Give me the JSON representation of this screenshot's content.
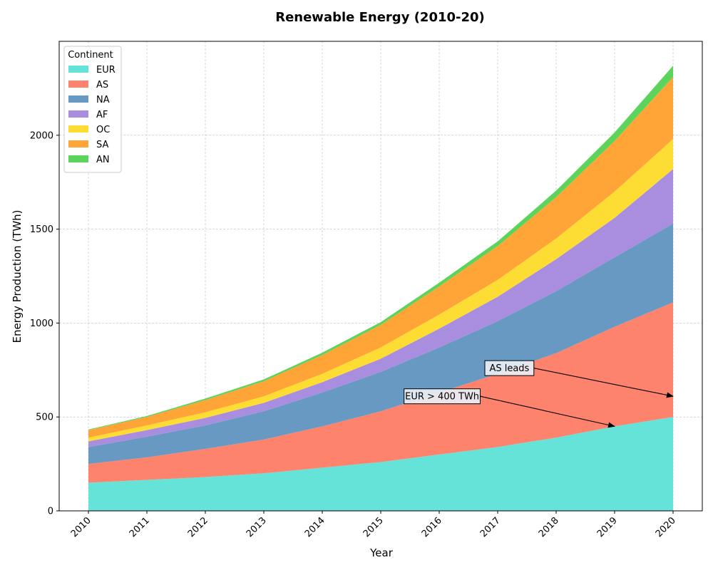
{
  "chart_data": {
    "type": "area",
    "stacked": true,
    "title": "Renewable Energy (2010-20)",
    "xlabel": "Year",
    "ylabel": "Energy Production (TWh)",
    "x": [
      2010,
      2011,
      2012,
      2013,
      2014,
      2015,
      2016,
      2017,
      2018,
      2019,
      2020
    ],
    "x_tick_labels": [
      "2010",
      "2011",
      "2012",
      "2013",
      "2014",
      "2015",
      "2016",
      "2017",
      "2018",
      "2019",
      "2020"
    ],
    "xlim": [
      2009.5,
      2020.5
    ],
    "ylim": [
      0,
      2500
    ],
    "y_ticks": [
      0,
      500,
      1000,
      1500,
      2000
    ],
    "y_tick_labels": [
      "0",
      "500",
      "1000",
      "1500",
      "2000"
    ],
    "grid": true,
    "legend": {
      "title": "Continent",
      "position": "top-left"
    },
    "series": [
      {
        "name": "EUR",
        "color": "#66e3d8",
        "values": [
          150,
          165,
          180,
          200,
          230,
          260,
          300,
          340,
          390,
          450,
          500
        ]
      },
      {
        "name": "AS",
        "color": "#fd836c",
        "values": [
          100,
          120,
          150,
          180,
          220,
          270,
          330,
          390,
          450,
          530,
          610
        ]
      },
      {
        "name": "NA",
        "color": "#6899c2",
        "values": [
          90,
          110,
          125,
          150,
          180,
          210,
          240,
          280,
          330,
          370,
          420
        ]
      },
      {
        "name": "AF",
        "color": "#a98ee0",
        "values": [
          30,
          35,
          40,
          45,
          55,
          70,
          100,
          130,
          170,
          210,
          290
        ]
      },
      {
        "name": "OC",
        "color": "#fddd34",
        "values": [
          20,
          25,
          30,
          35,
          45,
          60,
          75,
          90,
          110,
          140,
          160
        ]
      },
      {
        "name": "SA",
        "color": "#ffa436",
        "values": [
          40,
          45,
          65,
          80,
          100,
          120,
          150,
          180,
          220,
          270,
          330
        ]
      },
      {
        "name": "AN",
        "color": "#5cd45c",
        "values": [
          3,
          5,
          8,
          10,
          12,
          15,
          20,
          25,
          35,
          45,
          60
        ]
      }
    ],
    "annotations": [
      {
        "text": "EUR > 400 TWh",
        "text_x": 2016.05,
        "text_y": 610,
        "target_x": 2019,
        "target_y": 450
      },
      {
        "text": "AS leads",
        "text_x": 2017.2,
        "text_y": 760,
        "target_x": 2020,
        "target_y": 610
      }
    ]
  }
}
